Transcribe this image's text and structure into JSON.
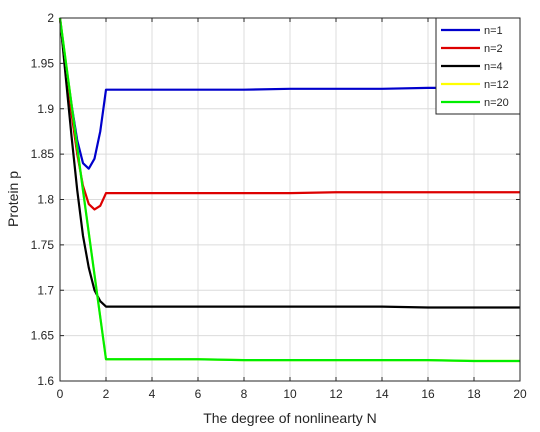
{
  "chart_data": {
    "type": "line",
    "title": "",
    "xlabel": "The degree of nonlinearty N",
    "ylabel": "Protein p",
    "xlim": [
      0,
      20
    ],
    "ylim": [
      1.6,
      2.0
    ],
    "x_ticks": [
      0,
      2,
      4,
      6,
      8,
      10,
      12,
      14,
      16,
      18,
      20
    ],
    "y_ticks": [
      1.6,
      1.65,
      1.7,
      1.75,
      1.8,
      1.85,
      1.9,
      1.95,
      2.0
    ],
    "x_tick_labels": [
      "0",
      "2",
      "4",
      "6",
      "8",
      "10",
      "12",
      "14",
      "16",
      "18",
      "20"
    ],
    "y_tick_labels": [
      "1.6",
      "1.65",
      "1.7",
      "1.75",
      "1.8",
      "1.85",
      "1.9",
      "1.95",
      "2"
    ],
    "grid": true,
    "legend_position": "top-right",
    "series": [
      {
        "name": "n=1",
        "color": "#0000cc",
        "x": [
          0,
          0.25,
          0.5,
          0.75,
          1.0,
          1.25,
          1.5,
          1.75,
          2.0,
          4,
          6,
          8,
          10,
          12,
          14,
          16,
          18,
          20
        ],
        "y": [
          2.0,
          1.95,
          1.905,
          1.865,
          1.84,
          1.834,
          1.845,
          1.875,
          1.921,
          1.921,
          1.921,
          1.921,
          1.922,
          1.922,
          1.922,
          1.923,
          1.923,
          1.923
        ]
      },
      {
        "name": "n=2",
        "color": "#dd0000",
        "x": [
          0,
          0.25,
          0.5,
          0.75,
          1.0,
          1.25,
          1.5,
          1.75,
          2.0,
          4,
          6,
          8,
          10,
          12,
          14,
          16,
          18,
          20
        ],
        "y": [
          2.0,
          1.945,
          1.895,
          1.85,
          1.815,
          1.795,
          1.789,
          1.793,
          1.807,
          1.807,
          1.807,
          1.807,
          1.807,
          1.808,
          1.808,
          1.808,
          1.808,
          1.808
        ]
      },
      {
        "name": "n=4",
        "color": "#000000",
        "x": [
          0,
          0.25,
          0.5,
          0.75,
          1.0,
          1.25,
          1.5,
          1.75,
          2.0,
          4,
          6,
          8,
          10,
          12,
          14,
          16,
          18,
          20
        ],
        "y": [
          2.0,
          1.935,
          1.87,
          1.81,
          1.76,
          1.725,
          1.7,
          1.688,
          1.682,
          1.682,
          1.682,
          1.682,
          1.682,
          1.682,
          1.682,
          1.681,
          1.681,
          1.681
        ]
      },
      {
        "name": "n=12",
        "color": "#ffff00",
        "x": [
          0,
          0.5,
          1.0,
          1.5,
          2.0,
          4,
          6,
          8,
          10,
          12,
          14,
          16,
          18,
          20
        ],
        "y": [
          2.0,
          1.905,
          1.81,
          1.717,
          1.624,
          1.624,
          1.624,
          1.623,
          1.623,
          1.623,
          1.623,
          1.623,
          1.622,
          1.622
        ]
      },
      {
        "name": "n=20",
        "color": "#00ee00",
        "x": [
          0,
          0.5,
          1.0,
          1.5,
          2.0,
          4,
          6,
          8,
          10,
          12,
          14,
          16,
          18,
          20
        ],
        "y": [
          2.0,
          1.905,
          1.81,
          1.717,
          1.624,
          1.624,
          1.624,
          1.623,
          1.623,
          1.623,
          1.623,
          1.623,
          1.622,
          1.622
        ]
      }
    ]
  }
}
